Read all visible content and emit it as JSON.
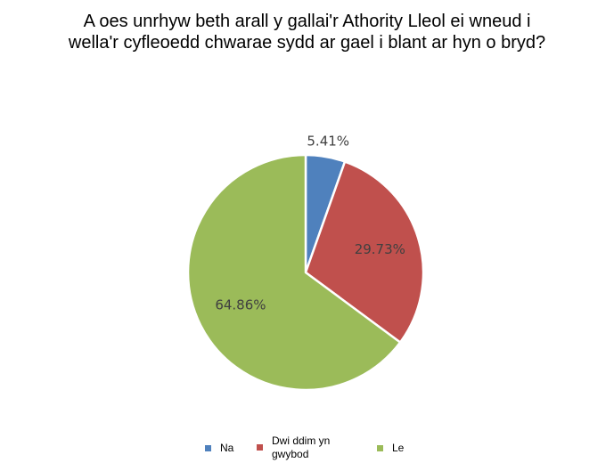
{
  "chart_data": {
    "type": "pie",
    "title_lines": [
      "A oes unrhyw beth arall y gallai'r Athority Lleol ei wneud i",
      "wella'r cyfleoedd chwarae sydd ar gael i blant ar hyn o bryd?"
    ],
    "slices": [
      {
        "name": "Na",
        "value": 5.41,
        "label": "5.41%",
        "color": "#4F81BD"
      },
      {
        "name": "Dwi ddim yn gwybod",
        "value": 29.73,
        "label": "29.73%",
        "color": "#C0504D"
      },
      {
        "name": "Le",
        "value": 64.86,
        "label": "64.86%",
        "color": "#9BBB59"
      }
    ],
    "legend": {
      "position": "bottom",
      "items": [
        {
          "line1": "Na",
          "line2": ""
        },
        {
          "line1": "Dwi ddim yn",
          "line2": "gwybod"
        },
        {
          "line1": "Le",
          "line2": ""
        }
      ]
    }
  }
}
